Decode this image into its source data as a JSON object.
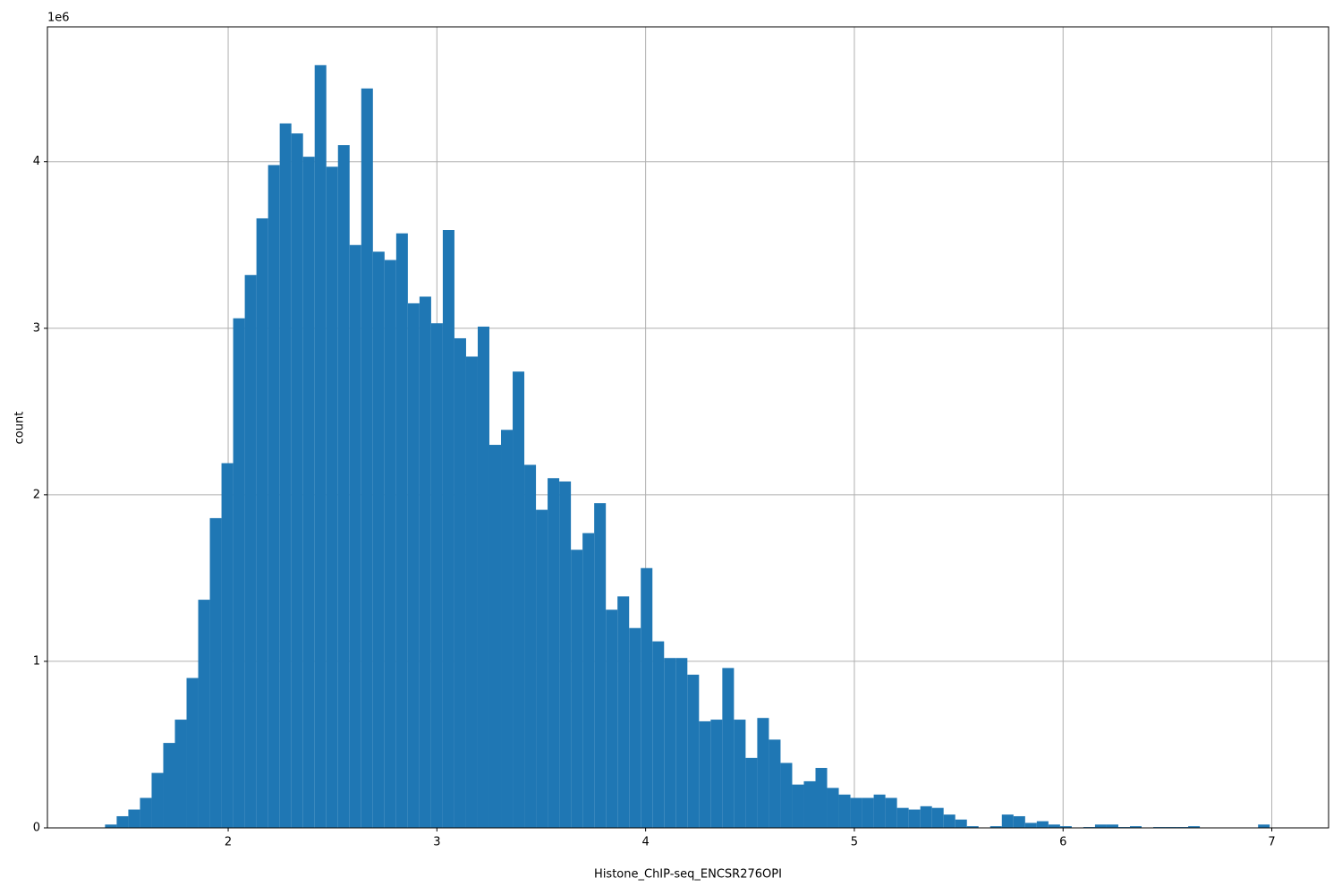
{
  "chart_data": {
    "type": "histogram",
    "xlabel": "Histone_ChIP-seq_ENCSR276OPI",
    "ylabel": "count",
    "y_offset_label": "1e6",
    "color": "#1f77b4",
    "grid": true,
    "bins": [
      1.41,
      1.4658,
      1.5216,
      1.5774,
      1.6332,
      1.689,
      1.7448,
      1.8006,
      1.8564,
      1.9122,
      1.968,
      2.0238,
      2.0796,
      2.1354,
      2.1912,
      2.247,
      2.3028,
      2.3586,
      2.4144,
      2.4702,
      2.526,
      2.5818,
      2.6376,
      2.6934,
      2.7492,
      2.805,
      2.8608,
      2.9166,
      2.9724,
      3.0282,
      3.084,
      3.1398,
      3.1956,
      3.2514,
      3.3072,
      3.363,
      3.4188,
      3.4746,
      3.5304,
      3.5862,
      3.642,
      3.6978,
      3.7536,
      3.8094,
      3.8652,
      3.921,
      3.9768,
      4.0326,
      4.0884,
      4.1442,
      4.2,
      4.2558,
      4.3116,
      4.3674,
      4.4232,
      4.479,
      4.5348,
      4.5906,
      4.6464,
      4.7022,
      4.758,
      4.8138,
      4.8696,
      4.9254,
      4.9812,
      5.037,
      5.0928,
      5.1486,
      5.2044,
      5.2602,
      5.316,
      5.3718,
      5.4276,
      5.4834,
      5.5392,
      5.595,
      5.6508,
      5.7066,
      5.7624,
      5.8182,
      5.874,
      5.9298,
      5.9856,
      6.0414,
      6.0972,
      6.153,
      6.2088,
      6.2646,
      6.3204,
      6.3762,
      6.432,
      6.4878,
      6.5436,
      6.5994,
      6.6552,
      6.711,
      6.7668,
      6.8226,
      6.8784,
      6.9342,
      6.99
    ],
    "values": [
      0.02,
      0.07,
      0.11,
      0.18,
      0.33,
      0.51,
      0.65,
      0.9,
      1.37,
      1.86,
      2.19,
      3.06,
      3.32,
      3.66,
      3.98,
      4.23,
      4.17,
      4.03,
      4.58,
      3.97,
      4.1,
      3.5,
      4.44,
      3.46,
      3.41,
      3.57,
      3.15,
      3.19,
      3.03,
      3.59,
      2.94,
      2.83,
      3.01,
      2.3,
      2.39,
      2.74,
      2.18,
      1.91,
      2.1,
      2.08,
      1.67,
      1.77,
      1.95,
      1.31,
      1.39,
      1.2,
      1.56,
      1.12,
      1.02,
      1.02,
      0.92,
      0.64,
      0.65,
      0.96,
      0.65,
      0.42,
      0.66,
      0.53,
      0.39,
      0.26,
      0.28,
      0.36,
      0.24,
      0.2,
      0.18,
      0.18,
      0.2,
      0.18,
      0.12,
      0.11,
      0.13,
      0.12,
      0.08,
      0.05,
      0.01,
      0,
      0.01,
      0.08,
      0.07,
      0.03,
      0.04,
      0.02,
      0.01,
      0,
      0.005,
      0.02,
      0.02,
      0.005,
      0.01,
      0,
      0.005,
      0.005,
      0.005,
      0.01,
      0,
      0,
      0,
      0,
      0,
      0.02
    ],
    "xlim": [
      1.134,
      7.272
    ],
    "ylim": [
      0,
      4.81
    ],
    "xticks": [
      2,
      3,
      4,
      5,
      6,
      7
    ],
    "yticks": [
      0,
      1,
      2,
      3,
      4
    ]
  }
}
